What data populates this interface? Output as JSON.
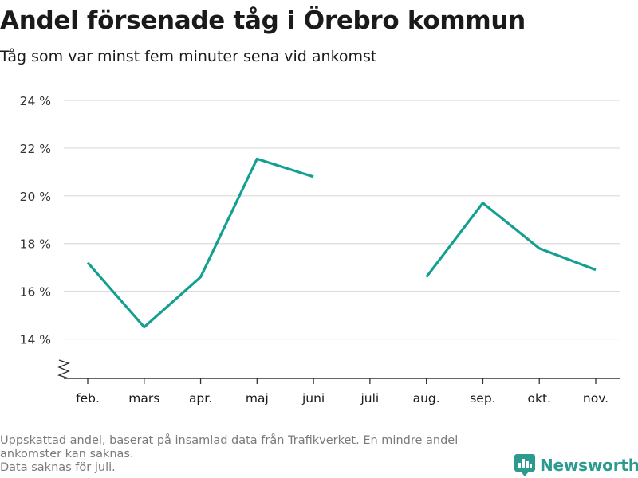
{
  "header": {
    "title": "Andel försenade tåg i Örebro kommun",
    "subtitle": "Tåg som var minst fem minuter sena vid ankomst"
  },
  "footer": {
    "notes": [
      "Uppskattad andel, baserat på insamlad data från Trafikverket. En mindre andel ankomster kan saknas.",
      "Data saknas för juli."
    ],
    "brand": "Newsworthy"
  },
  "colors": {
    "line": "#13a091",
    "grid": "#dcdcdc",
    "axis": "#333333",
    "brand": "#2c9b8f"
  },
  "chart_data": {
    "type": "line",
    "categories": [
      "feb.",
      "mars",
      "apr.",
      "maj",
      "juni",
      "juli",
      "aug.",
      "sep.",
      "okt.",
      "nov."
    ],
    "series": [
      {
        "values": [
          17.2,
          14.5,
          16.6,
          21.55,
          20.8,
          null,
          16.6,
          19.7,
          17.8,
          16.9
        ]
      }
    ],
    "yticks": [
      "14 %",
      "16 %",
      "18 %",
      "20 %",
      "22 %",
      "24 %"
    ],
    "ytick_values": [
      14,
      16,
      18,
      20,
      22,
      24
    ],
    "ylim": [
      12.35,
      24
    ],
    "axis_break": true,
    "grid": true
  }
}
